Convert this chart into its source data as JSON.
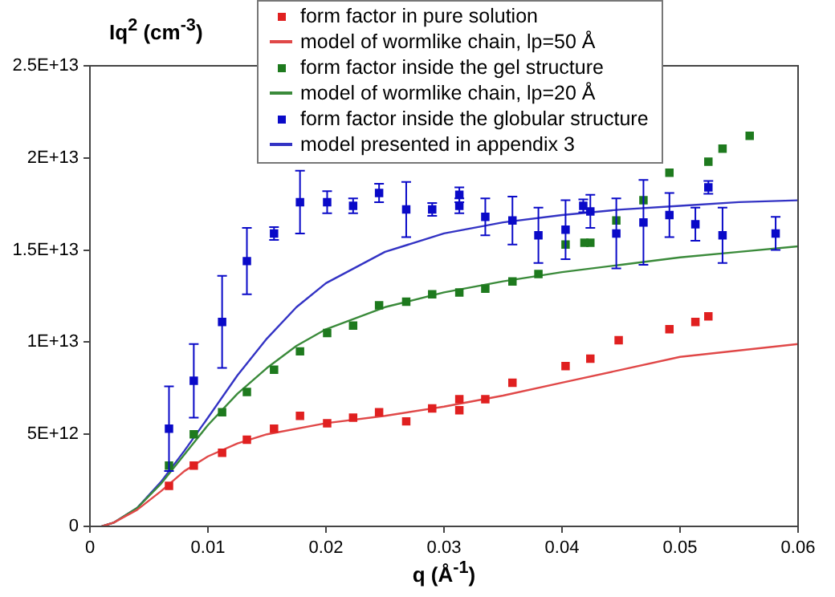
{
  "chart_data": {
    "type": "scatter",
    "ylabel": "Iq$^{2}$ (cm$^{-3}$)",
    "xlabel": "q (Å$^{-1}$)",
    "xlim": [
      0,
      0.06
    ],
    "xticks": [
      0,
      0.01,
      0.02,
      0.03,
      0.04,
      0.05,
      0.06
    ],
    "ylim": [
      0,
      25000000000000
    ],
    "yticks": [
      0,
      {
        "value": 5000000000000,
        "label": "5E+12"
      },
      {
        "value": 10000000000000,
        "label": "1E+13"
      },
      {
        "value": 15000000000000,
        "label": "1.5E+13"
      },
      {
        "value": 20000000000000,
        "label": "2E+13"
      },
      {
        "value": 25000000000000,
        "label": "2.5E+13"
      }
    ],
    "grid": false,
    "legend": "top",
    "series": [
      {
        "name": "form factor in pure solution",
        "marker": "square",
        "color": "#e02020",
        "x": [
          0.0067,
          0.0088,
          0.0112,
          0.0133,
          0.0156,
          0.0178,
          0.0201,
          0.0223,
          0.0245,
          0.0268,
          0.029,
          0.0313,
          0.0313,
          0.0335,
          0.0358,
          0.0403,
          0.0424,
          0.0448,
          0.0491,
          0.0513,
          0.0524
        ],
        "values": [
          2200000000000.0,
          3300000000000.0,
          4000000000000.0,
          4700000000000.0,
          5300000000000.0,
          6000000000000.0,
          5600000000000.0,
          5900000000000.0,
          6200000000000.0,
          5700000000000.0,
          6400000000000.0,
          6900000000000.0,
          6300000000000.0,
          6900000000000.0,
          7800000000000.0,
          8700000000000.0,
          9100000000000.0,
          10100000000000.0,
          10700000000000.0,
          11100000000000.0,
          11400000000000.0
        ]
      },
      {
        "name": "model of wormlike chain, lp=50 Å",
        "type": "line",
        "marker": "none",
        "color": "#e04848",
        "x": [
          0.001,
          0.002,
          0.004,
          0.006,
          0.008,
          0.01,
          0.0125,
          0.015,
          0.02,
          0.025,
          0.03,
          0.035,
          0.04,
          0.045,
          0.05,
          0.06
        ],
        "values": [
          0,
          200000000000.0,
          900000000000.0,
          1900000000000.0,
          3000000000000.0,
          3800000000000.0,
          4500000000000.0,
          5000000000000.0,
          5600000000000.0,
          6000000000000.0,
          6500000000000.0,
          7100000000000.0,
          7800000000000.0,
          8500000000000.0,
          9200000000000.0,
          9900000000000.0
        ]
      },
      {
        "name": "form factor inside the gel structure",
        "marker": "square",
        "color": "#1e7a1e",
        "x": [
          0.0067,
          0.0088,
          0.0112,
          0.0133,
          0.0156,
          0.0178,
          0.0201,
          0.0223,
          0.0245,
          0.0268,
          0.029,
          0.0313,
          0.0335,
          0.0358,
          0.038,
          0.0403,
          0.0419,
          0.0424,
          0.0446,
          0.0469,
          0.0491,
          0.0524,
          0.0536,
          0.0559
        ],
        "values": [
          3300000000000.0,
          5000000000000.0,
          6200000000000.0,
          7300000000000.0,
          8500000000000.0,
          9500000000000.0,
          10500000000000.0,
          10900000000000.0,
          12000000000000.0,
          12200000000000.0,
          12600000000000.0,
          12700000000000.0,
          12900000000000.0,
          13300000000000.0,
          13700000000000.0,
          15300000000000.0,
          15400000000000.0,
          15400000000000.0,
          16600000000000.0,
          17700000000000.0,
          19200000000000.0,
          19800000000000.0,
          20500000000000.0,
          21200000000000.0
        ]
      },
      {
        "name": "model of wormlike chain, lp=20 Å",
        "type": "line",
        "marker": "none",
        "color": "#3a8a3a",
        "x": [
          0.001,
          0.002,
          0.004,
          0.006,
          0.008,
          0.01,
          0.0125,
          0.015,
          0.0175,
          0.02,
          0.025,
          0.03,
          0.035,
          0.04,
          0.045,
          0.05,
          0.055,
          0.06
        ],
        "values": [
          0,
          200000000000.0,
          1000000000000.0,
          2300000000000.0,
          3900000000000.0,
          5500000000000.0,
          7200000000000.0,
          8600000000000.0,
          9800000000000.0,
          10700000000000.0,
          11900000000000.0,
          12700000000000.0,
          13300000000000.0,
          13800000000000.0,
          14200000000000.0,
          14600000000000.0,
          14900000000000.0,
          15200000000000.0
        ]
      },
      {
        "name": "form factor inside the globular structure",
        "marker": "square",
        "color": "#0a0ac8",
        "x": [
          0.0067,
          0.0088,
          0.0112,
          0.0133,
          0.0156,
          0.0178,
          0.0201,
          0.0223,
          0.0245,
          0.0268,
          0.029,
          0.0313,
          0.0313,
          0.0335,
          0.0358,
          0.038,
          0.0403,
          0.0418,
          0.0424,
          0.0446,
          0.0469,
          0.0491,
          0.0513,
          0.0524,
          0.0536,
          0.0581
        ],
        "values": [
          5300000000000.0,
          7900000000000.0,
          11100000000000.0,
          14400000000000.0,
          15900000000000.0,
          17600000000000.0,
          17600000000000.0,
          17400000000000.0,
          18100000000000.0,
          17200000000000.0,
          17200000000000.0,
          18000000000000.0,
          17400000000000.0,
          16800000000000.0,
          16600000000000.0,
          15800000000000.0,
          16100000000000.0,
          17400000000000.0,
          17100000000000.0,
          15900000000000.0,
          16500000000000.0,
          16900000000000.0,
          16400000000000.0,
          18400000000000.0,
          15800000000000.0,
          15900000000000.0
        ],
        "errors": [
          2300000000000.0,
          2000000000000.0,
          2500000000000.0,
          1800000000000.0,
          350000000000.0,
          1700000000000.0,
          600000000000.0,
          400000000000.0,
          500000000000.0,
          1500000000000.0,
          350000000000.0,
          400000000000.0,
          400000000000.0,
          1000000000000.0,
          1300000000000.0,
          1500000000000.0,
          1600000000000.0,
          350000000000.0,
          900000000000.0,
          1900000000000.0,
          2300000000000.0,
          1200000000000.0,
          900000000000.0,
          350000000000.0,
          1500000000000.0,
          900000000000.0
        ]
      },
      {
        "name": "model presented in appendix 3",
        "type": "line",
        "marker": "none",
        "color": "#3333c4",
        "x": [
          0.001,
          0.002,
          0.004,
          0.006,
          0.008,
          0.01,
          0.0125,
          0.015,
          0.0175,
          0.02,
          0.025,
          0.03,
          0.035,
          0.04,
          0.045,
          0.05,
          0.055,
          0.06
        ],
        "values": [
          0,
          200000000000.0,
          1000000000000.0,
          2400000000000.0,
          4100000000000.0,
          5900000000000.0,
          8200000000000.0,
          10200000000000.0,
          11900000000000.0,
          13200000000000.0,
          14900000000000.0,
          15900000000000.0,
          16500000000000.0,
          16900000000000.0,
          17200000000000.0,
          17400000000000.0,
          17600000000000.0,
          17700000000000.0
        ]
      }
    ]
  }
}
